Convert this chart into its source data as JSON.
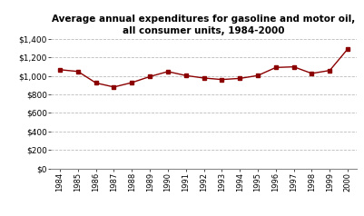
{
  "title": "Average annual expenditures for gasoline and motor oil,\nall consumer units, 1984-2000",
  "years": [
    "1984",
    "1985",
    "1986",
    "1987",
    "1988",
    "1989",
    "1990",
    "1991",
    "1992",
    "1993",
    "1994",
    "1995",
    "1996",
    "1997",
    "1998",
    "1999",
    "2000"
  ],
  "values": [
    1067,
    1048,
    924,
    880,
    928,
    993,
    1047,
    1004,
    977,
    961,
    973,
    1004,
    1091,
    1098,
    1027,
    1059,
    1291
  ],
  "line_color": "#8B0000",
  "marker": "s",
  "marker_size": 3,
  "ylim": [
    0,
    1400
  ],
  "yticks": [
    0,
    200,
    400,
    600,
    800,
    1000,
    1200,
    1400
  ],
  "background_color": "#ffffff",
  "grid_color": "#bbbbbb",
  "title_fontsize": 7.5,
  "xlabel_fontsize": 6,
  "ylabel_fontsize": 6.5
}
